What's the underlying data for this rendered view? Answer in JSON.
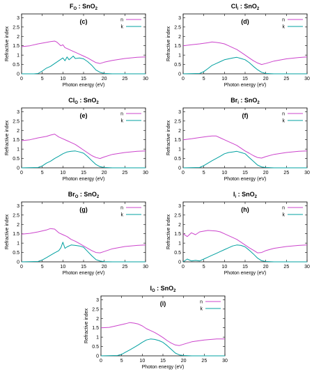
{
  "colors": {
    "n": "#cc44cc",
    "k": "#00a0a0",
    "axis": "#000000"
  },
  "chart_data": [
    {
      "type": "line",
      "title_base": "F",
      "title_sub": "O",
      "title_rest": " : SnO",
      "title_sub2": "2",
      "label": "(c)",
      "xlabel": "Photon energy (eV)",
      "ylabel": "Refractive index",
      "xlim": [
        0,
        30
      ],
      "ylim": [
        0,
        3.2
      ],
      "xticks": [
        0,
        5,
        10,
        15,
        20,
        25,
        30
      ],
      "yticks": [
        0,
        0.5,
        1,
        1.5,
        2,
        2.5,
        3
      ],
      "legend": "top-right",
      "series": [
        {
          "name": "n",
          "x": [
            0,
            2,
            4,
            6,
            7,
            8,
            8.5,
            9,
            9.5,
            10,
            10.5,
            11,
            11.5,
            12,
            12.5,
            13,
            14,
            15,
            16,
            17,
            18,
            19,
            20,
            22,
            25,
            28,
            30
          ],
          "y": [
            1.45,
            1.5,
            1.6,
            1.68,
            1.72,
            1.75,
            1.7,
            1.6,
            1.5,
            1.55,
            1.4,
            1.35,
            1.3,
            1.25,
            1.2,
            1.15,
            1.05,
            0.95,
            0.85,
            0.72,
            0.6,
            0.55,
            0.62,
            0.72,
            0.82,
            0.88,
            0.9
          ]
        },
        {
          "name": "k",
          "x": [
            0,
            3,
            4,
            5,
            6,
            7,
            8,
            9,
            10,
            10.5,
            11,
            11.5,
            12,
            12.5,
            13,
            14,
            15,
            16,
            17,
            18,
            19,
            20,
            22,
            25,
            30
          ],
          "y": [
            0,
            0,
            0.02,
            0.15,
            0.3,
            0.4,
            0.55,
            0.7,
            0.85,
            0.7,
            0.9,
            0.75,
            0.85,
            0.95,
            0.82,
            0.85,
            0.8,
            0.65,
            0.45,
            0.2,
            0.08,
            0.02,
            0,
            0,
            0
          ]
        }
      ]
    },
    {
      "type": "line",
      "title_base": "Cl",
      "title_sub": "i",
      "title_rest": " : SnO",
      "title_sub2": "2",
      "label": "(d)",
      "xlabel": "Photon energy (eV)",
      "ylabel": "Refractive index",
      "xlim": [
        0,
        30
      ],
      "ylim": [
        0,
        3.2
      ],
      "xticks": [
        0,
        5,
        10,
        15,
        20,
        25,
        30
      ],
      "yticks": [
        0,
        0.5,
        1,
        1.5,
        2,
        2.5,
        3
      ],
      "legend": "top-right",
      "series": [
        {
          "name": "n",
          "x": [
            0,
            2,
            4,
            6,
            7,
            8,
            9,
            10,
            11,
            12,
            13,
            14,
            15,
            16,
            17,
            18,
            19,
            20,
            22,
            25,
            28,
            30
          ],
          "y": [
            1.5,
            1.55,
            1.6,
            1.66,
            1.7,
            1.68,
            1.65,
            1.6,
            1.5,
            1.4,
            1.3,
            1.15,
            1.0,
            0.85,
            0.7,
            0.58,
            0.5,
            0.55,
            0.68,
            0.8,
            0.87,
            0.9
          ]
        },
        {
          "name": "k",
          "x": [
            0,
            4,
            5,
            6,
            7,
            8,
            9,
            10,
            11,
            12,
            13,
            14,
            15,
            16,
            17,
            18,
            19,
            20,
            22,
            25,
            30
          ],
          "y": [
            0,
            0.02,
            0.12,
            0.28,
            0.45,
            0.55,
            0.65,
            0.75,
            0.8,
            0.85,
            0.88,
            0.82,
            0.75,
            0.6,
            0.4,
            0.22,
            0.08,
            0.02,
            0,
            0,
            0
          ]
        }
      ]
    },
    {
      "type": "line",
      "title_base": "Cl",
      "title_sub": "O",
      "title_rest": " : SnO",
      "title_sub2": "2",
      "label": "(e)",
      "xlabel": "Photon energy (eV)",
      "ylabel": "Refractive index",
      "xlim": [
        0,
        30
      ],
      "ylim": [
        0,
        3.2
      ],
      "xticks": [
        0,
        5,
        10,
        15,
        20,
        25,
        30
      ],
      "yticks": [
        0,
        0.5,
        1,
        1.5,
        2,
        2.5,
        3
      ],
      "legend": "top-right",
      "series": [
        {
          "name": "n",
          "x": [
            0,
            2,
            4,
            6,
            7,
            8,
            9,
            10,
            11,
            12,
            13,
            14,
            15,
            16,
            17,
            18,
            19,
            20,
            22,
            25,
            28,
            30
          ],
          "y": [
            1.45,
            1.5,
            1.6,
            1.68,
            1.75,
            1.8,
            1.65,
            1.55,
            1.45,
            1.35,
            1.25,
            1.1,
            0.95,
            0.8,
            0.65,
            0.55,
            0.5,
            0.58,
            0.72,
            0.82,
            0.88,
            0.9
          ]
        },
        {
          "name": "k",
          "x": [
            0,
            4,
            5,
            6,
            7,
            8,
            9,
            10,
            11,
            12,
            13,
            14,
            15,
            16,
            17,
            18,
            19,
            20,
            22,
            25,
            30
          ],
          "y": [
            0,
            0.02,
            0.1,
            0.25,
            0.35,
            0.5,
            0.62,
            0.75,
            0.85,
            0.88,
            0.9,
            0.85,
            0.78,
            0.6,
            0.38,
            0.18,
            0.06,
            0.02,
            0,
            0,
            0
          ]
        }
      ]
    },
    {
      "type": "line",
      "title_base": "Br",
      "title_sub": "i",
      "title_rest": " : SnO",
      "title_sub2": "2",
      "label": "(f)",
      "xlabel": "Photon energy (eV)",
      "ylabel": "Refractive index",
      "xlim": [
        0,
        30
      ],
      "ylim": [
        0,
        3.2
      ],
      "xticks": [
        0,
        5,
        10,
        15,
        20,
        25,
        30
      ],
      "yticks": [
        0,
        0.5,
        1,
        1.5,
        2,
        2.5,
        3
      ],
      "legend": "top-right",
      "series": [
        {
          "name": "n",
          "x": [
            0,
            2,
            4,
            6,
            7,
            8,
            9,
            10,
            11,
            12,
            13,
            14,
            15,
            16,
            17,
            18,
            19,
            20,
            22,
            25,
            28,
            30
          ],
          "y": [
            1.5,
            1.55,
            1.62,
            1.68,
            1.7,
            1.7,
            1.6,
            1.5,
            1.4,
            1.3,
            1.2,
            1.05,
            0.9,
            0.78,
            0.65,
            0.55,
            0.52,
            0.6,
            0.72,
            0.82,
            0.88,
            0.9
          ]
        },
        {
          "name": "k",
          "x": [
            0,
            4,
            5,
            6,
            7,
            8,
            9,
            10,
            11,
            12,
            13,
            14,
            15,
            16,
            17,
            18,
            19,
            20,
            22,
            25,
            30
          ],
          "y": [
            0,
            0.02,
            0.12,
            0.25,
            0.38,
            0.5,
            0.62,
            0.75,
            0.82,
            0.85,
            0.88,
            0.82,
            0.75,
            0.55,
            0.35,
            0.15,
            0.05,
            0.02,
            0,
            0,
            0
          ]
        }
      ]
    },
    {
      "type": "line",
      "title_base": "Br",
      "title_sub": "O",
      "title_rest": " : SnO",
      "title_sub2": "2",
      "label": "(g)",
      "xlabel": "Photon energy (eV)",
      "ylabel": "Refractive index",
      "xlim": [
        0,
        30
      ],
      "ylim": [
        0,
        3.2
      ],
      "xticks": [
        0,
        5,
        10,
        15,
        20,
        25,
        30
      ],
      "yticks": [
        0,
        0.5,
        1,
        1.5,
        2,
        2.5,
        3
      ],
      "legend": "top-right",
      "series": [
        {
          "name": "n",
          "x": [
            0,
            2,
            4,
            6,
            7,
            8,
            9,
            10,
            11,
            12,
            13,
            14,
            15,
            16,
            17,
            18,
            19,
            20,
            22,
            25,
            28,
            30
          ],
          "y": [
            1.48,
            1.52,
            1.6,
            1.7,
            1.78,
            1.75,
            1.55,
            1.45,
            1.35,
            1.2,
            1.1,
            0.98,
            0.85,
            0.72,
            0.6,
            0.5,
            0.48,
            0.55,
            0.7,
            0.82,
            0.88,
            0.9
          ]
        },
        {
          "name": "k",
          "x": [
            0,
            4,
            5,
            6,
            7,
            8,
            9,
            9.5,
            10,
            10.5,
            11,
            12,
            13,
            14,
            15,
            16,
            17,
            18,
            19,
            20,
            22,
            25,
            30
          ],
          "y": [
            0,
            0.02,
            0.1,
            0.22,
            0.35,
            0.48,
            0.6,
            0.75,
            1.05,
            0.72,
            0.8,
            0.9,
            0.88,
            0.85,
            0.78,
            0.55,
            0.32,
            0.12,
            0.04,
            0.01,
            0,
            0,
            0
          ]
        }
      ]
    },
    {
      "type": "line",
      "title_base": "I",
      "title_sub": "i",
      "title_rest": " : SnO",
      "title_sub2": "2",
      "label": "(h)",
      "xlabel": "Photon energy (eV)",
      "ylabel": "Refractive index",
      "xlim": [
        0,
        30
      ],
      "ylim": [
        0,
        3.2
      ],
      "xticks": [
        0,
        5,
        10,
        15,
        20,
        25,
        30
      ],
      "yticks": [
        0,
        0.5,
        1,
        1.5,
        2,
        2.5,
        3
      ],
      "legend": "top-right",
      "series": [
        {
          "name": "n",
          "x": [
            0,
            1,
            2,
            3,
            4,
            6,
            8,
            9,
            10,
            11,
            12,
            13,
            14,
            15,
            16,
            17,
            18,
            19,
            20,
            22,
            25,
            28,
            30
          ],
          "y": [
            1.5,
            1.35,
            1.55,
            1.45,
            1.6,
            1.68,
            1.65,
            1.6,
            1.5,
            1.4,
            1.3,
            1.2,
            1.05,
            0.9,
            0.75,
            0.62,
            0.48,
            0.5,
            0.6,
            0.72,
            0.82,
            0.88,
            0.9
          ]
        },
        {
          "name": "k",
          "x": [
            0,
            1,
            2,
            3,
            4,
            5,
            6,
            7,
            8,
            9,
            10,
            11,
            12,
            13,
            14,
            15,
            16,
            17,
            18,
            19,
            20,
            22,
            25,
            30
          ],
          "y": [
            0,
            0.15,
            0.05,
            0.08,
            0.05,
            0.15,
            0.25,
            0.35,
            0.45,
            0.55,
            0.65,
            0.75,
            0.85,
            0.9,
            0.88,
            0.8,
            0.62,
            0.42,
            0.2,
            0.06,
            0.02,
            0,
            0,
            0
          ]
        }
      ]
    },
    {
      "type": "line",
      "title_base": "I",
      "title_sub": "O",
      "title_rest": " : SnO",
      "title_sub2": "2",
      "label": "(i)",
      "xlabel": "Photon energy (eV)",
      "ylabel": "Refractive index",
      "xlim": [
        0,
        30
      ],
      "ylim": [
        0,
        3.2
      ],
      "xticks": [
        0,
        5,
        10,
        15,
        20,
        25,
        30
      ],
      "yticks": [
        0,
        0.5,
        1,
        1.5,
        2,
        2.5,
        3
      ],
      "legend": "top-right",
      "series": [
        {
          "name": "n",
          "x": [
            0,
            2,
            4,
            6,
            7,
            8,
            9,
            10,
            11,
            12,
            13,
            14,
            15,
            16,
            17,
            18,
            19,
            20,
            22,
            25,
            28,
            30
          ],
          "y": [
            1.5,
            1.52,
            1.62,
            1.72,
            1.78,
            1.75,
            1.7,
            1.6,
            1.45,
            1.35,
            1.25,
            1.12,
            0.98,
            0.82,
            0.68,
            0.58,
            0.55,
            0.62,
            0.75,
            0.85,
            0.9,
            0.9
          ]
        },
        {
          "name": "k",
          "x": [
            0,
            4,
            5,
            6,
            7,
            8,
            9,
            10,
            11,
            12,
            13,
            14,
            15,
            16,
            17,
            18,
            19,
            20,
            22,
            25,
            30
          ],
          "y": [
            0,
            0.02,
            0.08,
            0.2,
            0.32,
            0.45,
            0.58,
            0.72,
            0.85,
            0.9,
            0.88,
            0.82,
            0.72,
            0.55,
            0.35,
            0.15,
            0.05,
            0.02,
            0,
            0,
            0
          ]
        }
      ]
    }
  ]
}
